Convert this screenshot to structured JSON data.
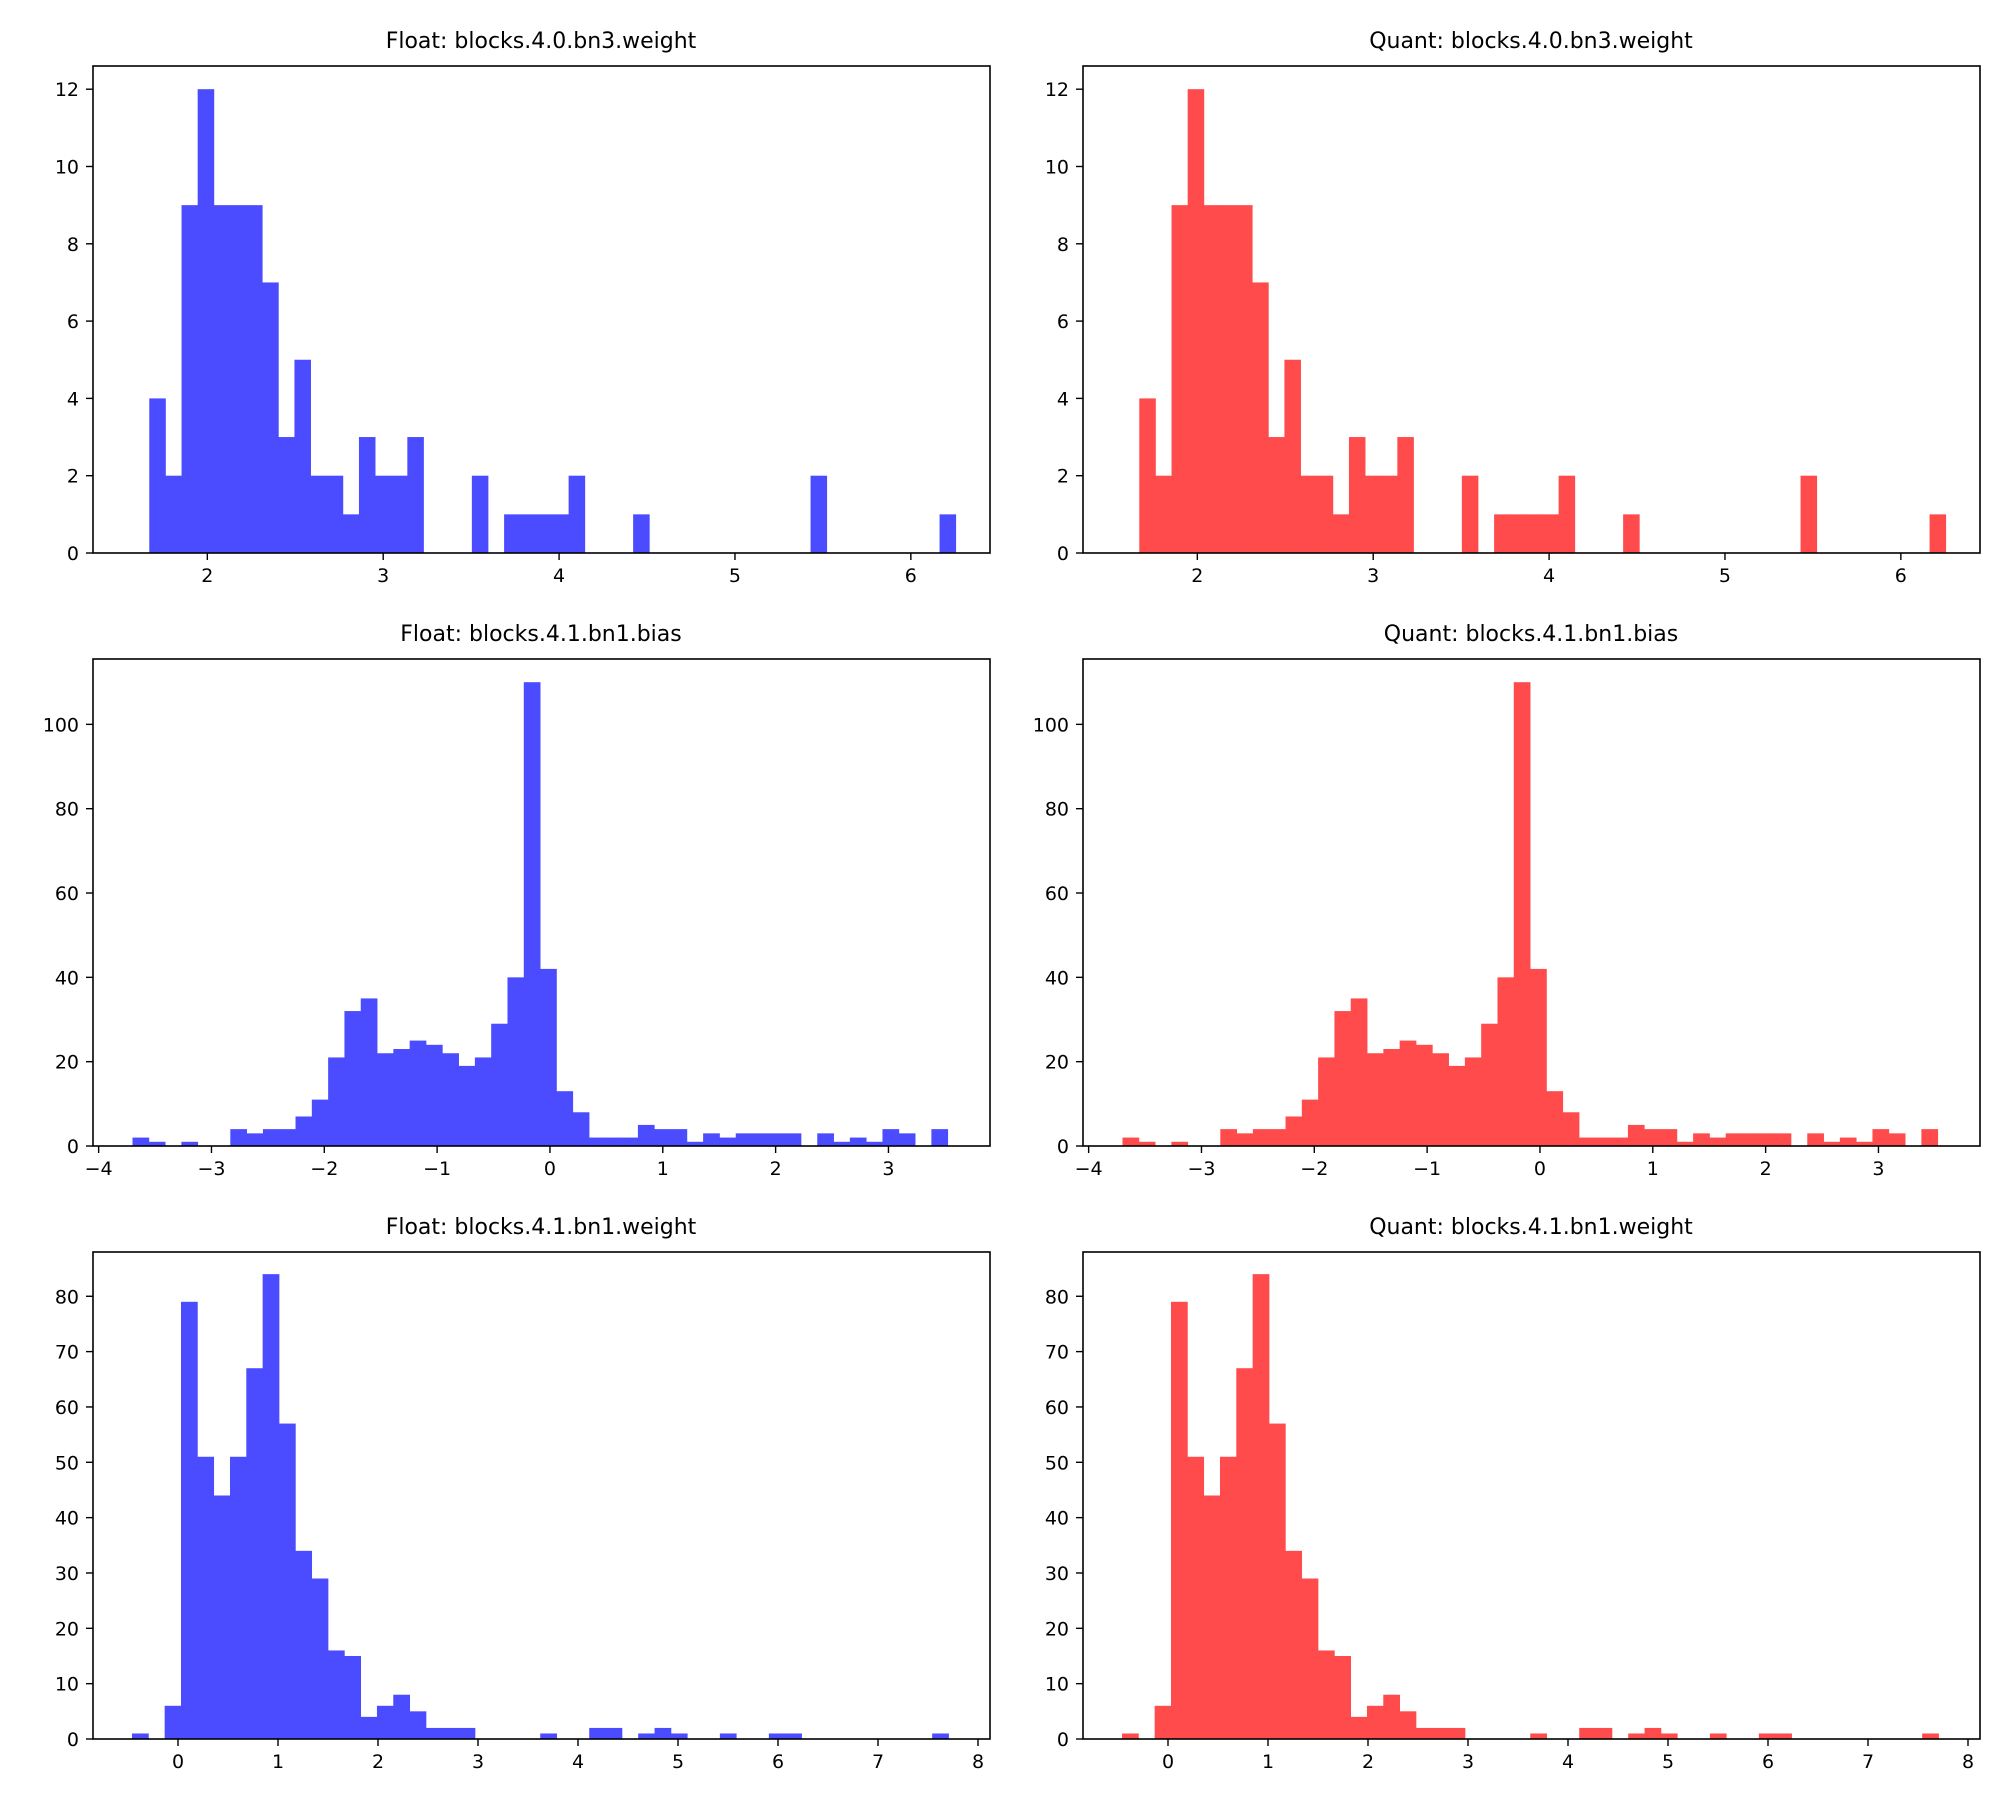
{
  "figure": {
    "background": "#ffffff",
    "colors": {
      "float": "#4b4bff",
      "quant": "#ff4b4b"
    }
  },
  "chart_data": [
    {
      "type": "bar",
      "title": "Float: blocks.4.0.bn3.weight",
      "color": "#4b4bff",
      "xlabel": "",
      "ylabel": "",
      "xlim": [
        1.35,
        6.45
      ],
      "ylim": [
        0,
        12.6
      ],
      "xticks": [
        2,
        3,
        4,
        5,
        6
      ],
      "xtick_labels": [
        "2",
        "3",
        "4",
        "5",
        "6"
      ],
      "yticks": [
        0,
        2,
        4,
        6,
        8,
        10,
        12
      ],
      "ytick_labels": [
        "0",
        "2",
        "4",
        "6",
        "8",
        "10",
        "12"
      ],
      "bin_start": 1.67,
      "bin_width": 0.0917,
      "counts": [
        4,
        2,
        9,
        12,
        9,
        9,
        9,
        7,
        3,
        5,
        2,
        2,
        1,
        3,
        2,
        2,
        3,
        0,
        0,
        0,
        2,
        0,
        1,
        1,
        1,
        1,
        2,
        0,
        0,
        0,
        1,
        0,
        0,
        0,
        0,
        0,
        0,
        0,
        0,
        0,
        0,
        2,
        0,
        0,
        0,
        0,
        0,
        0,
        0,
        1
      ],
      "grid": false
    },
    {
      "type": "bar",
      "title": "Quant: blocks.4.0.bn3.weight",
      "color": "#ff4b4b",
      "xlabel": "",
      "ylabel": "",
      "xlim": [
        1.35,
        6.45
      ],
      "ylim": [
        0,
        12.6
      ],
      "xticks": [
        2,
        3,
        4,
        5,
        6
      ],
      "xtick_labels": [
        "2",
        "3",
        "4",
        "5",
        "6"
      ],
      "yticks": [
        0,
        2,
        4,
        6,
        8,
        10,
        12
      ],
      "ytick_labels": [
        "0",
        "2",
        "4",
        "6",
        "8",
        "10",
        "12"
      ],
      "bin_start": 1.67,
      "bin_width": 0.0917,
      "counts": [
        4,
        2,
        9,
        12,
        9,
        9,
        9,
        7,
        3,
        5,
        2,
        2,
        1,
        3,
        2,
        2,
        3,
        0,
        0,
        0,
        2,
        0,
        1,
        1,
        1,
        1,
        2,
        0,
        0,
        0,
        1,
        0,
        0,
        0,
        0,
        0,
        0,
        0,
        0,
        0,
        0,
        2,
        0,
        0,
        0,
        0,
        0,
        0,
        0,
        1
      ],
      "grid": false
    },
    {
      "type": "bar",
      "title": "Float: blocks.4.1.bn1.bias",
      "color": "#4b4bff",
      "xlabel": "",
      "ylabel": "",
      "xlim": [
        -4.05,
        3.9
      ],
      "ylim": [
        0,
        115.5
      ],
      "xticks": [
        -4,
        -3,
        -2,
        -1,
        0,
        1,
        2,
        3
      ],
      "xtick_labels": [
        "−4",
        "−3",
        "−2",
        "−1",
        "0",
        "1",
        "2",
        "3"
      ],
      "yticks": [
        0,
        20,
        40,
        60,
        80,
        100
      ],
      "ytick_labels": [
        "0",
        "20",
        "40",
        "60",
        "80",
        "100"
      ],
      "bin_start": -3.7,
      "bin_width": 0.1445,
      "counts": [
        2,
        1,
        0,
        1,
        0,
        0,
        4,
        3,
        4,
        4,
        7,
        11,
        21,
        32,
        35,
        22,
        23,
        25,
        24,
        22,
        19,
        21,
        29,
        40,
        110,
        42,
        13,
        8,
        2,
        2,
        2,
        5,
        4,
        4,
        1,
        3,
        2,
        3,
        3,
        3,
        3,
        0,
        3,
        1,
        2,
        1,
        4,
        3,
        0,
        4
      ],
      "grid": false
    },
    {
      "type": "bar",
      "title": "Quant: blocks.4.1.bn1.bias",
      "color": "#ff4b4b",
      "xlabel": "",
      "ylabel": "",
      "xlim": [
        -4.05,
        3.9
      ],
      "ylim": [
        0,
        115.5
      ],
      "xticks": [
        -4,
        -3,
        -2,
        -1,
        0,
        1,
        2,
        3
      ],
      "xtick_labels": [
        "−4",
        "−3",
        "−2",
        "−1",
        "0",
        "1",
        "2",
        "3"
      ],
      "yticks": [
        0,
        20,
        40,
        60,
        80,
        100
      ],
      "ytick_labels": [
        "0",
        "20",
        "40",
        "60",
        "80",
        "100"
      ],
      "bin_start": -3.7,
      "bin_width": 0.1445,
      "counts": [
        2,
        1,
        0,
        1,
        0,
        0,
        4,
        3,
        4,
        4,
        7,
        11,
        21,
        32,
        35,
        22,
        23,
        25,
        24,
        22,
        19,
        21,
        29,
        40,
        110,
        42,
        13,
        8,
        2,
        2,
        2,
        5,
        4,
        4,
        1,
        3,
        2,
        3,
        3,
        3,
        3,
        0,
        3,
        1,
        2,
        1,
        4,
        3,
        0,
        4
      ],
      "grid": false
    },
    {
      "type": "bar",
      "title": "Float: blocks.4.1.bn1.weight",
      "color": "#4b4bff",
      "xlabel": "",
      "ylabel": "",
      "xlim": [
        -0.85,
        8.12
      ],
      "ylim": [
        0,
        88
      ],
      "xticks": [
        0,
        1,
        2,
        3,
        4,
        5,
        6,
        7,
        8
      ],
      "xtick_labels": [
        "0",
        "1",
        "2",
        "3",
        "4",
        "5",
        "6",
        "7",
        "8"
      ],
      "yticks": [
        0,
        10,
        20,
        30,
        40,
        50,
        60,
        70,
        80
      ],
      "ytick_labels": [
        "0",
        "10",
        "20",
        "30",
        "40",
        "50",
        "60",
        "70",
        "80"
      ],
      "bin_start": -0.46,
      "bin_width": 0.1633,
      "counts": [
        1,
        0,
        6,
        79,
        51,
        44,
        51,
        67,
        84,
        57,
        34,
        29,
        16,
        15,
        4,
        6,
        8,
        5,
        2,
        2,
        2,
        0,
        0,
        0,
        0,
        1,
        0,
        0,
        2,
        2,
        0,
        1,
        2,
        1,
        0,
        0,
        1,
        0,
        0,
        1,
        1,
        0,
        0,
        0,
        0,
        0,
        0,
        0,
        0,
        1
      ],
      "grid": false
    },
    {
      "type": "bar",
      "title": "Quant: blocks.4.1.bn1.weight",
      "color": "#ff4b4b",
      "xlabel": "",
      "ylabel": "",
      "xlim": [
        -0.85,
        8.12
      ],
      "ylim": [
        0,
        88
      ],
      "xticks": [
        0,
        1,
        2,
        3,
        4,
        5,
        6,
        7,
        8
      ],
      "xtick_labels": [
        "0",
        "1",
        "2",
        "3",
        "4",
        "5",
        "6",
        "7",
        "8"
      ],
      "yticks": [
        0,
        10,
        20,
        30,
        40,
        50,
        60,
        70,
        80
      ],
      "ytick_labels": [
        "0",
        "10",
        "20",
        "30",
        "40",
        "50",
        "60",
        "70",
        "80"
      ],
      "bin_start": -0.46,
      "bin_width": 0.1633,
      "counts": [
        1,
        0,
        6,
        79,
        51,
        44,
        51,
        67,
        84,
        57,
        34,
        29,
        16,
        15,
        4,
        6,
        8,
        5,
        2,
        2,
        2,
        0,
        0,
        0,
        0,
        1,
        0,
        0,
        2,
        2,
        0,
        1,
        2,
        1,
        0,
        0,
        1,
        0,
        0,
        1,
        1,
        0,
        0,
        0,
        0,
        0,
        0,
        0,
        0,
        1
      ],
      "grid": false
    }
  ]
}
